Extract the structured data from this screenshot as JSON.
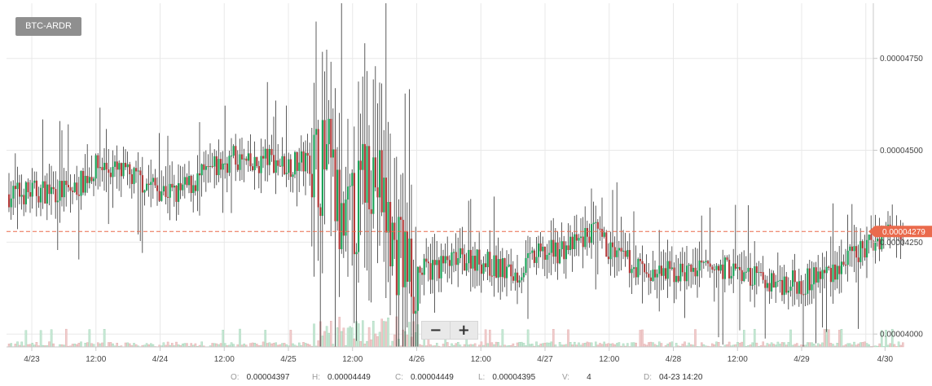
{
  "pair_label": "BTC-ARDR",
  "zoom": {
    "out_label": "−",
    "in_label": "+"
  },
  "ohlc": {
    "o_label": "O:",
    "o_value": "0.00004397",
    "h_label": "H:",
    "h_value": "0.00004449",
    "c_label": "C:",
    "c_value": "0.00004449",
    "l_label": "L:",
    "l_value": "0.00004395",
    "v_label": "V:",
    "v_value": "4",
    "d_label": "D:",
    "d_value": "04-23 14:20"
  },
  "colors": {
    "up": "#1ca35a",
    "down": "#b33b3b",
    "price_tag": "#ea6a4c",
    "grid": "#e8e8e8"
  },
  "chart_data": {
    "type": "candlestick",
    "title": "",
    "xlabel": "",
    "ylabel": "",
    "last_price_label": "0.00004279",
    "last_price": 4.279e-05,
    "x_tick_labels": [
      "4/23",
      "12:00",
      "4/24",
      "12:00",
      "4/25",
      "12:00",
      "4/26",
      "12:00",
      "4/27",
      "12:00",
      "4/28",
      "12:00",
      "4/29",
      "4/30"
    ],
    "y_tick_labels": [
      "0.00004000",
      "0.00004250",
      "0.00004500",
      "0.00004750"
    ],
    "y_ticks": [
      4e-05,
      4.25e-05,
      4.5e-05,
      4.75e-05
    ],
    "ylim": [
      3.965e-05,
      4.9e-05
    ],
    "time_range_days": [
      0,
      7.1
    ],
    "trend_anchors_days": [
      0,
      0.3,
      0.5,
      0.7,
      1.0,
      1.3,
      1.6,
      1.75,
      1.9,
      2.0,
      2.15,
      2.35,
      2.5,
      2.6,
      2.72,
      2.8,
      2.9,
      3.0,
      3.15,
      3.3,
      3.6,
      3.8,
      3.95,
      4.1,
      4.4,
      4.55,
      4.7,
      5.0,
      5.3,
      5.6,
      5.9,
      6.2,
      6.5,
      6.7,
      6.85,
      7.0
    ],
    "trend_anchors_price": [
      4.38e-05,
      4.39e-05,
      4.39e-05,
      4.46e-05,
      4.42e-05,
      4.38e-05,
      4.45e-05,
      4.48e-05,
      4.45e-05,
      4.48e-05,
      4.46e-05,
      4.47e-05,
      4.45e-05,
      4.25e-05,
      4.35e-05,
      4.48e-05,
      4.38e-05,
      4.24e-05,
      4.16e-05,
      4.18e-05,
      4.21e-05,
      4.18e-05,
      4.16e-05,
      4.21e-05,
      4.24e-05,
      4.28e-05,
      4.22e-05,
      4.16e-05,
      4.17e-05,
      4.18e-05,
      4.14e-05,
      4.14e-05,
      4.19e-05,
      4.24e-05,
      4.28e-05,
      4.29e-05
    ],
    "volume_max": 1
  }
}
